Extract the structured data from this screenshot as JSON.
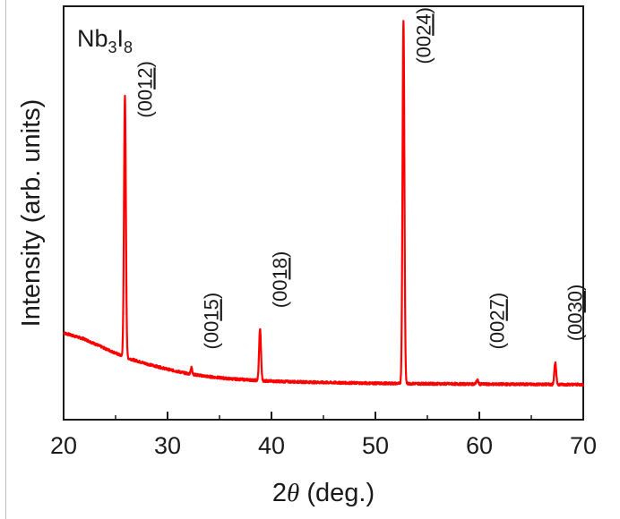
{
  "chart_data": {
    "type": "line",
    "compound": {
      "base": "Nb",
      "sub1": "3",
      "mid": "I",
      "sub2": "8"
    },
    "xlabel": {
      "prefix": "2",
      "theta": "θ",
      "suffix": " (deg.)"
    },
    "ylabel": "Intensity (arb. units)",
    "xlim": [
      20,
      70
    ],
    "ylim": [
      0,
      100
    ],
    "yticks_shown": false,
    "grid": false,
    "x_ticks": [
      20,
      30,
      40,
      50,
      60,
      70
    ],
    "color": "#ff0000",
    "background_baseline": [
      {
        "x": 20,
        "y": 21.0
      },
      {
        "x": 22,
        "y": 19.5
      },
      {
        "x": 24,
        "y": 17.2
      },
      {
        "x": 26,
        "y": 15.0
      },
      {
        "x": 28,
        "y": 13.5
      },
      {
        "x": 30,
        "y": 12.2
      },
      {
        "x": 32,
        "y": 11.1
      },
      {
        "x": 34,
        "y": 10.4
      },
      {
        "x": 36,
        "y": 9.9
      },
      {
        "x": 38,
        "y": 9.6
      },
      {
        "x": 40,
        "y": 9.3
      },
      {
        "x": 45,
        "y": 9.0
      },
      {
        "x": 50,
        "y": 8.8
      },
      {
        "x": 55,
        "y": 8.7
      },
      {
        "x": 60,
        "y": 8.6
      },
      {
        "x": 65,
        "y": 8.55
      },
      {
        "x": 70,
        "y": 8.5
      }
    ],
    "peaks": [
      {
        "x": 25.9,
        "height": 63.0,
        "width": 0.18
      },
      {
        "x": 32.3,
        "height": 1.6,
        "width": 0.16
      },
      {
        "x": 38.9,
        "height": 12.5,
        "width": 0.18
      },
      {
        "x": 52.7,
        "height": 88.0,
        "width": 0.18
      },
      {
        "x": 59.8,
        "height": 1.0,
        "width": 0.18
      },
      {
        "x": 67.3,
        "height": 5.2,
        "width": 0.18
      }
    ],
    "annotations": [
      {
        "x": 25.9,
        "y": 73,
        "prefix": "(00",
        "index": "12",
        "suffix": ")"
      },
      {
        "x": 32.3,
        "y": 17,
        "prefix": "(00",
        "index": "15",
        "suffix": ")"
      },
      {
        "x": 38.9,
        "y": 27,
        "prefix": "(00",
        "index": "18",
        "suffix": ")"
      },
      {
        "x": 52.7,
        "y": 86,
        "prefix": "(00",
        "index": "24",
        "suffix": ")"
      },
      {
        "x": 59.8,
        "y": 17,
        "prefix": "(00",
        "index": "27",
        "suffix": ")"
      },
      {
        "x": 67.3,
        "y": 19,
        "prefix": "(00",
        "index": "30",
        "suffix": ")"
      }
    ]
  }
}
